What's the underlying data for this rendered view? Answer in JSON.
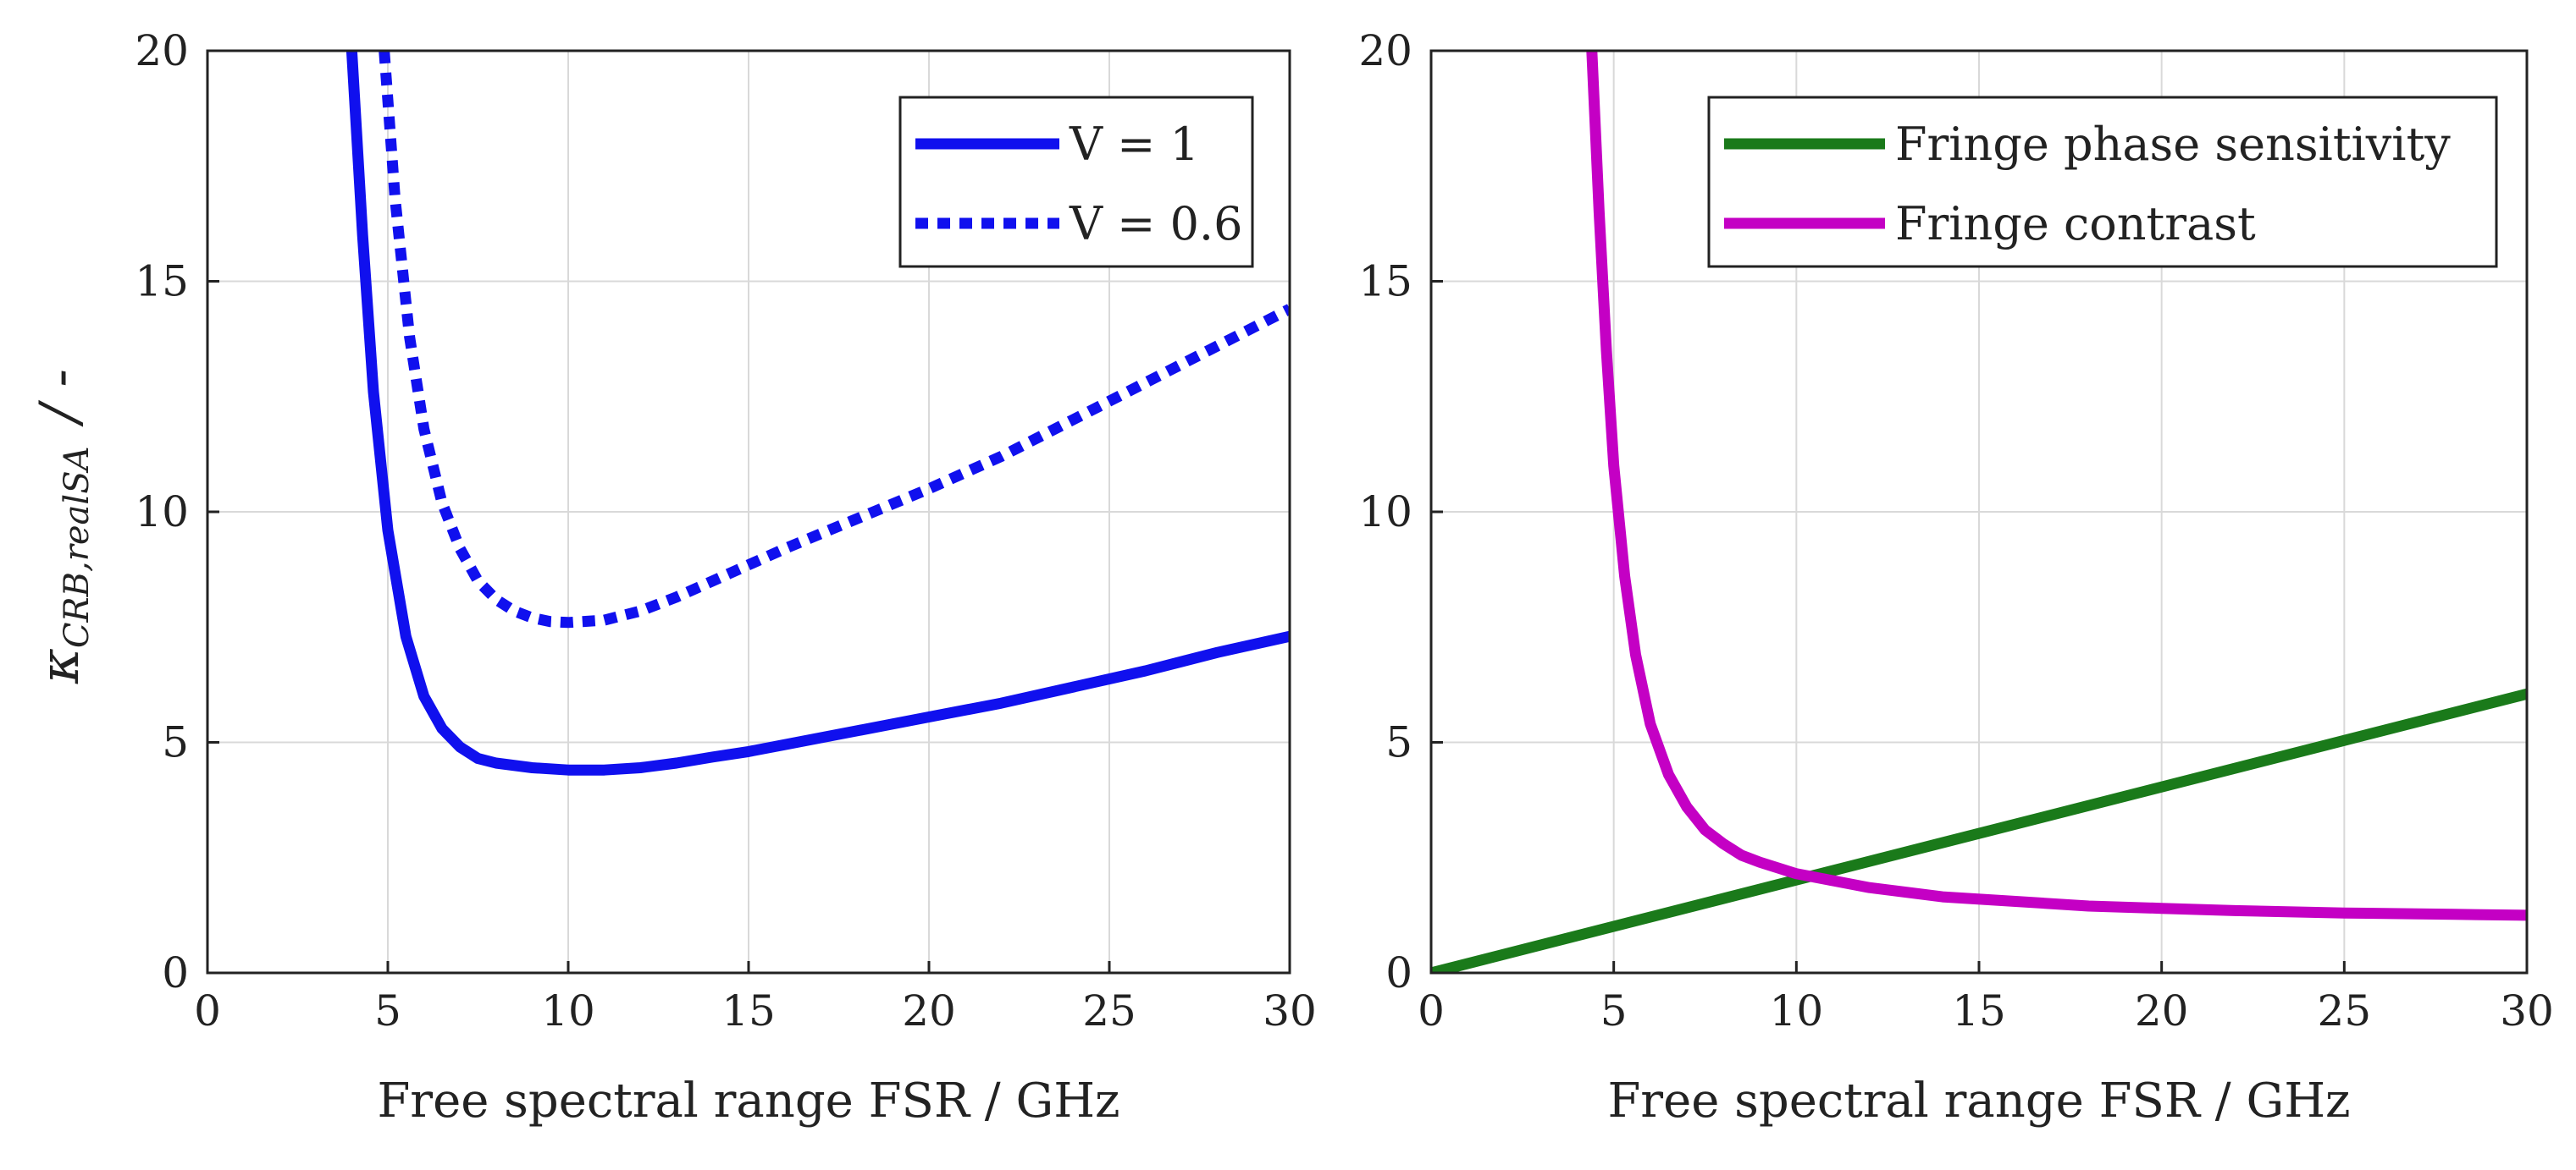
{
  "chart_data": [
    {
      "type": "line",
      "xlabel": "Free spectral range FSR / GHz",
      "ylabel": {
        "symbol": "κ",
        "subscript": "CRB,realSA",
        "unit": "/ -"
      },
      "xlim": [
        0,
        30
      ],
      "ylim": [
        0,
        20
      ],
      "xticks": [
        "0",
        "5",
        "10",
        "15",
        "20",
        "25",
        "30"
      ],
      "yticks": [
        "0",
        "5",
        "10",
        "15",
        "20"
      ],
      "grid": true,
      "legend_position": "top-right",
      "series": [
        {
          "name": "V = 1",
          "color": "#1010ee",
          "style": "solid",
          "x": [
            4.0,
            4.3,
            4.6,
            5.0,
            5.5,
            6.0,
            6.5,
            7.0,
            7.5,
            8.0,
            9.0,
            10.0,
            11.0,
            12.0,
            13.0,
            14.0,
            15.0,
            16.0,
            18.0,
            20.0,
            22.0,
            24.0,
            26.0,
            28.0,
            30.0
          ],
          "y": [
            20.0,
            16.0,
            12.6,
            9.6,
            7.3,
            6.0,
            5.3,
            4.9,
            4.65,
            4.55,
            4.45,
            4.4,
            4.4,
            4.45,
            4.55,
            4.68,
            4.8,
            4.95,
            5.25,
            5.55,
            5.85,
            6.2,
            6.55,
            6.95,
            7.3
          ]
        },
        {
          "name": "V = 0.6",
          "color": "#1010ee",
          "style": "dotted",
          "x": [
            4.9,
            5.2,
            5.6,
            6.0,
            6.5,
            7.0,
            7.5,
            8.0,
            8.5,
            9.0,
            9.5,
            10.0,
            11.0,
            12.0,
            13.0,
            14.0,
            15.0,
            16.0,
            18.0,
            20.0,
            22.0,
            24.0,
            26.0,
            28.0,
            30.0
          ],
          "y": [
            20.0,
            16.8,
            13.8,
            11.8,
            10.2,
            9.2,
            8.5,
            8.1,
            7.85,
            7.7,
            7.62,
            7.6,
            7.65,
            7.85,
            8.15,
            8.5,
            8.85,
            9.2,
            9.85,
            10.5,
            11.2,
            12.0,
            12.8,
            13.6,
            14.4
          ]
        }
      ]
    },
    {
      "type": "line",
      "xlabel": "Free spectral range FSR / GHz",
      "ylabel": "",
      "xlim": [
        0,
        30
      ],
      "ylim": [
        0,
        20
      ],
      "xticks": [
        "0",
        "5",
        "10",
        "15",
        "20",
        "25",
        "30"
      ],
      "yticks": [
        "0",
        "5",
        "10",
        "15",
        "20"
      ],
      "grid": true,
      "legend_position": "top-right",
      "series": [
        {
          "name": "Fringe phase sensitivity",
          "color": "#1a7a1a",
          "style": "solid",
          "x": [
            0,
            30
          ],
          "y": [
            0,
            6.05
          ]
        },
        {
          "name": "Fringe contrast",
          "color": "#c400c4",
          "style": "solid",
          "x": [
            4.4,
            4.6,
            4.8,
            5.0,
            5.3,
            5.6,
            6.0,
            6.5,
            7.0,
            7.5,
            8.0,
            8.5,
            9.0,
            10.0,
            11.0,
            12.0,
            14.0,
            16.0,
            18.0,
            20.0,
            22.0,
            25.0,
            28.0,
            30.0
          ],
          "y": [
            20.0,
            16.5,
            13.5,
            11.0,
            8.6,
            6.9,
            5.4,
            4.3,
            3.6,
            3.1,
            2.8,
            2.55,
            2.4,
            2.15,
            2.0,
            1.85,
            1.65,
            1.55,
            1.45,
            1.4,
            1.35,
            1.3,
            1.27,
            1.25
          ]
        }
      ]
    }
  ]
}
